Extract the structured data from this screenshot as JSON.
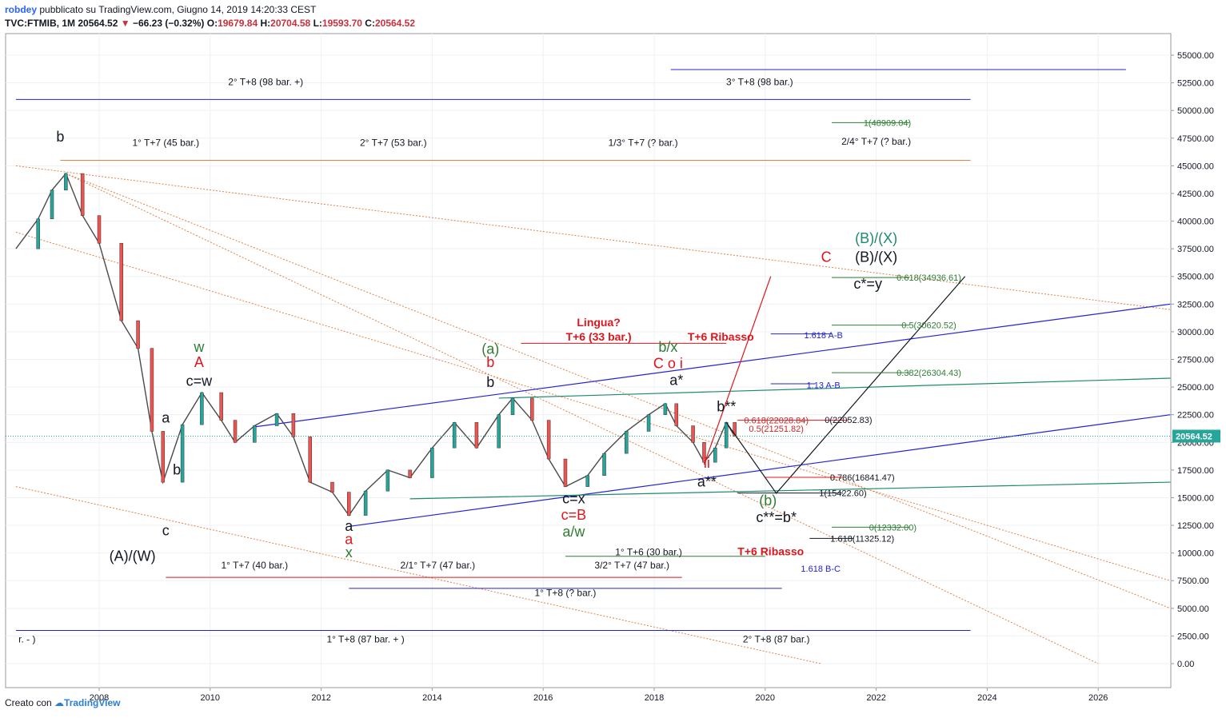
{
  "header": {
    "user": "robdey",
    "published": "pubblicato su TradingView.com, Giugno 14, 2019 14:20:33 CEST",
    "symbol": "TVC:FTMIB, 1M",
    "last": "20564.52",
    "change": "−66.23 (−0.32%)",
    "o_label": "O:",
    "o_value": "19679.84",
    "h_label": "H:",
    "h_value": "20704.58",
    "l_label": "L:",
    "l_value": "19593.70",
    "c_label": "C:",
    "c_value": "20564.52"
  },
  "footer": {
    "created": "Creato con",
    "brand": "TradingView"
  },
  "chart_data": {
    "type": "line",
    "x_ticks": [
      "2008",
      "2010",
      "2012",
      "2014",
      "2016",
      "2018",
      "2020",
      "2022",
      "2024",
      "2026"
    ],
    "y_ticks": [
      "55000.00",
      "52500.00",
      "50000.00",
      "47500.00",
      "45000.00",
      "42500.00",
      "40000.00",
      "37500.00",
      "35000.00",
      "32500.00",
      "30000.00",
      "27500.00",
      "25000.00",
      "22500.00",
      "20000.00",
      "17500.00",
      "15000.00",
      "12500.00",
      "10000.00",
      "7500.00",
      "5000.00",
      "2500.00",
      "0.00"
    ],
    "ylim": [
      0,
      55000
    ],
    "xlim": [
      2006.5,
      2027.3
    ],
    "last_price": "20564.52",
    "colors": {
      "up": "#26a69a",
      "down": "#ef5350",
      "wave": "#131722",
      "red": "#e0151c",
      "green": "#2e7d32",
      "teal": "#1e8a6e",
      "blue": "#2323d6",
      "orange": "#e0824a"
    },
    "series": [
      {
        "points": [
          [
            2006.5,
            37500
          ],
          [
            2006.9,
            40200
          ],
          [
            2007.15,
            42800
          ],
          [
            2007.4,
            44300
          ],
          [
            2007.7,
            40500
          ],
          [
            2008.0,
            38000
          ],
          [
            2008.4,
            31000
          ],
          [
            2008.7,
            28500
          ],
          [
            2008.95,
            21000
          ],
          [
            2009.15,
            16400
          ],
          [
            2009.5,
            21600
          ],
          [
            2009.85,
            24500
          ],
          [
            2010.2,
            22000
          ],
          [
            2010.45,
            20000
          ],
          [
            2010.8,
            21500
          ],
          [
            2011.2,
            22600
          ],
          [
            2011.5,
            20500
          ],
          [
            2011.8,
            16400
          ],
          [
            2012.2,
            15500
          ],
          [
            2012.5,
            13400
          ],
          [
            2012.8,
            15600
          ],
          [
            2013.2,
            17500
          ],
          [
            2013.6,
            16800
          ],
          [
            2014.0,
            19500
          ],
          [
            2014.4,
            21800
          ],
          [
            2014.8,
            19500
          ],
          [
            2015.2,
            22500
          ],
          [
            2015.45,
            24000
          ],
          [
            2015.8,
            22000
          ],
          [
            2016.1,
            18500
          ],
          [
            2016.4,
            16000
          ],
          [
            2016.8,
            17000
          ],
          [
            2017.1,
            19000
          ],
          [
            2017.5,
            21000
          ],
          [
            2017.9,
            22500
          ],
          [
            2018.2,
            23500
          ],
          [
            2018.4,
            21500
          ],
          [
            2018.7,
            20000
          ],
          [
            2018.9,
            18200
          ],
          [
            2019.1,
            19500
          ],
          [
            2019.3,
            21800
          ],
          [
            2019.45,
            20564
          ]
        ]
      }
    ],
    "price_labels": [
      {
        "text": "b",
        "color": "#131722",
        "x": 2007.3,
        "y": 47200
      },
      {
        "text": "w",
        "color": "#2e7d32",
        "x": 2009.8,
        "y": 28200
      },
      {
        "text": "A",
        "color": "#e0151c",
        "x": 2009.8,
        "y": 26800
      },
      {
        "text": "c=w",
        "color": "#131722",
        "x": 2009.8,
        "y": 25100
      },
      {
        "text": "a",
        "color": "#131722",
        "x": 2009.2,
        "y": 21800
      },
      {
        "text": "b",
        "color": "#131722",
        "x": 2009.4,
        "y": 17100
      },
      {
        "text": "c",
        "color": "#131722",
        "x": 2009.2,
        "y": 11600
      },
      {
        "text": "(A)/(W)",
        "color": "#131722",
        "x": 2008.6,
        "y": 9300
      },
      {
        "text": "a",
        "color": "#131722",
        "x": 2012.5,
        "y": 12000
      },
      {
        "text": "a",
        "color": "#e0151c",
        "x": 2012.5,
        "y": 10800
      },
      {
        "text": "x",
        "color": "#2e7d32",
        "x": 2012.5,
        "y": 9600
      },
      {
        "text": "(a)",
        "color": "#2e7d32",
        "x": 2015.05,
        "y": 28000
      },
      {
        "text": "b",
        "color": "#e0151c",
        "x": 2015.05,
        "y": 26800
      },
      {
        "text": "b",
        "color": "#131722",
        "x": 2015.05,
        "y": 25000
      },
      {
        "text": "c=x",
        "color": "#131722",
        "x": 2016.55,
        "y": 14500
      },
      {
        "text": "c=B",
        "color": "#e0151c",
        "x": 2016.55,
        "y": 13000
      },
      {
        "text": "a/w",
        "color": "#2e7d32",
        "x": 2016.55,
        "y": 11500
      },
      {
        "text": "b/x",
        "color": "#2e7d32",
        "x": 2018.25,
        "y": 28200
      },
      {
        "text": "C o i",
        "color": "#e0151c",
        "x": 2018.25,
        "y": 26700
      },
      {
        "text": "a*",
        "color": "#131722",
        "x": 2018.4,
        "y": 25200
      },
      {
        "text": "b**",
        "color": "#131722",
        "x": 2019.3,
        "y": 22800
      },
      {
        "text": "ii",
        "color": "#e0151c",
        "x": 2018.95,
        "y": 17700
      },
      {
        "text": "a**",
        "color": "#131722",
        "x": 2018.95,
        "y": 16000
      },
      {
        "text": "(b)",
        "color": "#2e7d32",
        "x": 2020.05,
        "y": 14300
      },
      {
        "text": "c**=b*",
        "color": "#131722",
        "x": 2020.2,
        "y": 12800
      },
      {
        "text": "(B)/(X)",
        "color": "#1e8a6e",
        "x": 2022.0,
        "y": 38000
      },
      {
        "text": "C",
        "color": "#e0151c",
        "x": 2021.1,
        "y": 36300
      },
      {
        "text": "(B)/(X)",
        "color": "#131722",
        "x": 2022.0,
        "y": 36300
      },
      {
        "text": "c*=y",
        "color": "#131722",
        "x": 2021.85,
        "y": 33900
      }
    ],
    "time_labels": [
      {
        "text": "2° T+8 (98 bar. +)",
        "x": 2011.0,
        "y": 52300
      },
      {
        "text": "3° T+8 (98 bar.)",
        "x": 2019.9,
        "y": 52300
      },
      {
        "text": "1° T+7 (45 bar.)",
        "x": 2009.2,
        "y": 46800
      },
      {
        "text": "2° T+7 (53 bar.)",
        "x": 2013.3,
        "y": 46800
      },
      {
        "text": "1/3° T+7 (? bar.)",
        "x": 2017.8,
        "y": 46800
      },
      {
        "text": "2/4° T+7 (? bar.)",
        "x": 2022.0,
        "y": 46900
      },
      {
        "text": "1° T+7 (40 bar.)",
        "x": 2010.8,
        "y": 8600
      },
      {
        "text": "2/1° T+7 (47 bar.)",
        "x": 2014.1,
        "y": 8600
      },
      {
        "text": "3/2° T+7 (47 bar.)",
        "x": 2017.6,
        "y": 8600
      },
      {
        "text": "1° T+6 (30 bar.)",
        "x": 2017.9,
        "y": 9800
      },
      {
        "text": "1° T+8 (? bar.)",
        "x": 2016.4,
        "y": 6100
      },
      {
        "text": "1° T+8 (87 bar. + )",
        "x": 2012.8,
        "y": 1900
      },
      {
        "text": "2° T+8 (87 bar.)",
        "x": 2020.2,
        "y": 1900
      },
      {
        "text": "r. - )",
        "x": 2006.7,
        "y": 1900
      }
    ],
    "callouts": [
      {
        "text": "Lingua?",
        "color": "#e0151c",
        "x": 2017.0,
        "y": 30500
      },
      {
        "text": "T+6 (33 bar.)",
        "color": "#e0151c",
        "x": 2017.0,
        "y": 29200
      },
      {
        "text": "T+6 Ribasso",
        "color": "#e0151c",
        "x": 2019.2,
        "y": 29200
      },
      {
        "text": "T+6 Ribasso",
        "color": "#e0151c",
        "x": 2020.1,
        "y": 9800
      }
    ],
    "fib_levels": [
      {
        "text": "1(48909.04)",
        "color": "#2e7d32",
        "x": 2022.2,
        "y": 48900
      },
      {
        "text": "0.618(34936.61)",
        "color": "#2e7d32",
        "x": 2022.95,
        "y": 34900
      },
      {
        "text": "0.5(30620.52)",
        "color": "#2e7d32",
        "x": 2022.95,
        "y": 30600
      },
      {
        "text": "0.382(26304.43)",
        "color": "#2e7d32",
        "x": 2022.95,
        "y": 26300
      },
      {
        "text": "1.618 A-B",
        "color": "#2323d6",
        "x": 2021.05,
        "y": 29700
      },
      {
        "text": "1.13 A-B",
        "color": "#2323d6",
        "x": 2021.05,
        "y": 25200
      },
      {
        "text": "0.618(22028.84)",
        "color": "#c62828",
        "x": 2020.2,
        "y": 22000
      },
      {
        "text": "0.5(21251.82)",
        "color": "#c62828",
        "x": 2020.2,
        "y": 21250
      },
      {
        "text": "0(22052.83)",
        "color": "#131722",
        "x": 2021.5,
        "y": 22050
      },
      {
        "text": "0.786(16841.47)",
        "color": "#131722",
        "x": 2021.75,
        "y": 16840
      },
      {
        "text": "1(15422.60)",
        "color": "#131722",
        "x": 2021.4,
        "y": 15420
      },
      {
        "text": "0(12332.00)",
        "color": "#2e7d32",
        "x": 2022.3,
        "y": 12330
      },
      {
        "text": "1.618(11325.12)",
        "color": "#131722",
        "x": 2021.75,
        "y": 11320
      },
      {
        "text": "1.618 B-C",
        "color": "#2323d6",
        "x": 2021.0,
        "y": 8600
      }
    ]
  }
}
